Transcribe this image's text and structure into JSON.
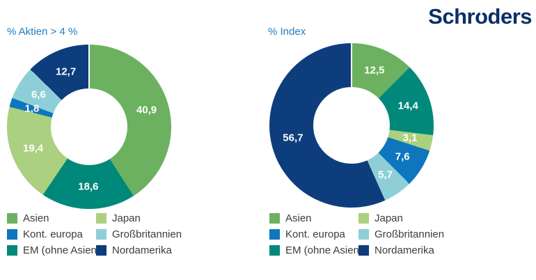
{
  "logo": {
    "prefix": "Schr",
    "o": "o",
    "suffix": "ders",
    "color": "#0a2f66"
  },
  "palette": {
    "title_blue": "#1b7ec5",
    "legend_text": "#3c3c3b",
    "asien_green": "#6cb15f",
    "japan_light_green": "#abd07f",
    "kont_europa_blue": "#0e76bd",
    "grossbritannien_cyan": "#8ecfd7",
    "em_teal": "#00897b",
    "nordamerika_navy": "#0d3d7c"
  },
  "chart_data": [
    {
      "type": "pie",
      "subtype": "donut",
      "title": "% Aktien > 4 %",
      "start_angle_deg": 0,
      "direction": "clockwise",
      "slices": [
        {
          "label": "Asien",
          "value": 40.9,
          "display": "40,9",
          "color": "#6cb15f"
        },
        {
          "label": "EM (ohne Asien)",
          "value": 18.6,
          "display": "18,6",
          "color": "#00897b"
        },
        {
          "label": "Japan",
          "value": 19.4,
          "display": "19,4",
          "color": "#abd07f"
        },
        {
          "label": "Kont. europa",
          "value": 1.8,
          "display": "1,8",
          "color": "#0e76bd"
        },
        {
          "label": "Großbritannien",
          "value": 6.6,
          "display": "6,6",
          "color": "#8ecfd7"
        },
        {
          "label": "Nordamerika",
          "value": 12.7,
          "display": "12,7",
          "color": "#0d3d7c"
        }
      ],
      "legend_order": [
        "Asien",
        "Japan",
        "Kont. europa",
        "Großbritannien",
        "EM (ohne Asien)",
        "Nordamerika"
      ]
    },
    {
      "type": "pie",
      "subtype": "donut",
      "title": "% Index",
      "start_angle_deg": 0,
      "direction": "clockwise",
      "slices": [
        {
          "label": "Asien",
          "value": 12.5,
          "display": "12,5",
          "color": "#6cb15f"
        },
        {
          "label": "EM (ohne Asien)",
          "value": 14.4,
          "display": "14,4",
          "color": "#00897b"
        },
        {
          "label": "Japan",
          "value": 3.1,
          "display": "3,1",
          "color": "#abd07f"
        },
        {
          "label": "Kont. europa",
          "value": 7.6,
          "display": "7,6",
          "color": "#0e76bd"
        },
        {
          "label": "Großbritannien",
          "value": 5.7,
          "display": "5,7",
          "color": "#8ecfd7"
        },
        {
          "label": "Nordamerika",
          "value": 56.7,
          "display": "56,7",
          "color": "#0d3d7c"
        }
      ],
      "legend_order": [
        "Asien",
        "Japan",
        "Kont. europa",
        "Großbritannien",
        "EM (ohne Asien)",
        "Nordamerika"
      ]
    }
  ]
}
